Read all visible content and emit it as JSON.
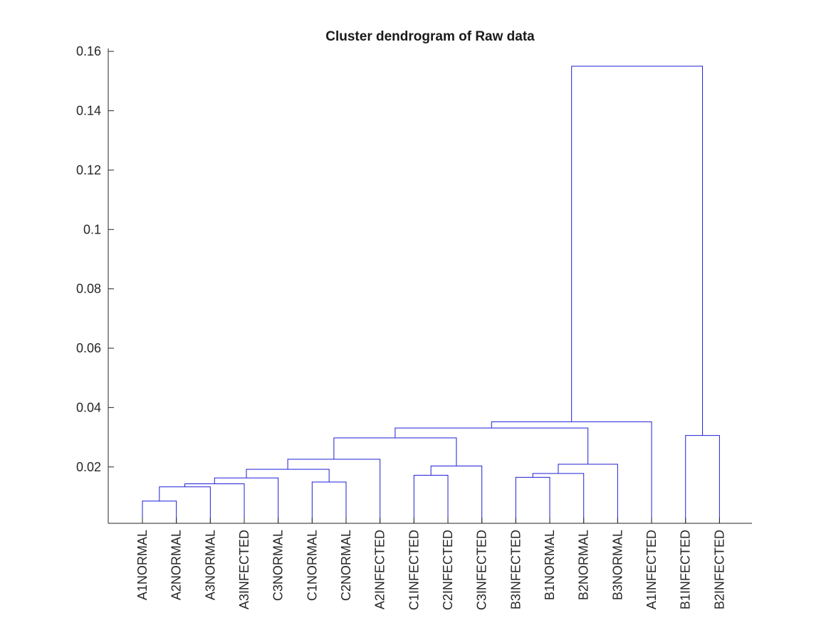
{
  "chart_data": {
    "type": "dendrogram",
    "title": "Cluster dendrogram of Raw data",
    "xlabel": "",
    "ylabel": "",
    "ylim": [
      0.001,
      0.161
    ],
    "yticks": [
      0.02,
      0.04,
      0.06,
      0.08,
      0.1,
      0.12,
      0.14,
      0.16
    ],
    "ytick_labels": [
      "0.02",
      "0.04",
      "0.06",
      "0.08",
      "0.1",
      "0.12",
      "0.14",
      "0.16"
    ],
    "grid": false,
    "link_color": "#1f1fd6",
    "leaves": [
      "A1NORMAL",
      "A2NORMAL",
      "A3NORMAL",
      "A3INFECTED",
      "C3NORMAL",
      "C1NORMAL",
      "C2NORMAL",
      "A2INFECTED",
      "C1INFECTED",
      "C2INFECTED",
      "C3INFECTED",
      "B3INFECTED",
      "B1NORMAL",
      "B2NORMAL",
      "B3NORMAL",
      "A1INFECTED",
      "B1INFECTED",
      "B2INFECTED"
    ],
    "merges": [
      {
        "left": "A1NORMAL",
        "right": "A2NORMAL",
        "height": 0.0085
      },
      {
        "left": "m1",
        "right": "A3NORMAL",
        "height": 0.0133
      },
      {
        "left": "m2",
        "right": "A3INFECTED",
        "height": 0.0143
      },
      {
        "left": "m3",
        "right": "C3NORMAL",
        "height": 0.0163
      },
      {
        "left": "C1NORMAL",
        "right": "C2NORMAL",
        "height": 0.0149
      },
      {
        "left": "m4",
        "right": "m5",
        "height": 0.0192
      },
      {
        "left": "m6",
        "right": "A2INFECTED",
        "height": 0.0226
      },
      {
        "left": "C1INFECTED",
        "right": "C2INFECTED",
        "height": 0.0172
      },
      {
        "left": "m8",
        "right": "C3INFECTED",
        "height": 0.0203
      },
      {
        "left": "m7",
        "right": "m9",
        "height": 0.0298
      },
      {
        "left": "B3INFECTED",
        "right": "B1NORMAL",
        "height": 0.0165
      },
      {
        "left": "m11",
        "right": "B2NORMAL",
        "height": 0.0178
      },
      {
        "left": "m12",
        "right": "B3NORMAL",
        "height": 0.0209
      },
      {
        "left": "m10",
        "right": "m13",
        "height": 0.0331
      },
      {
        "left": "m14",
        "right": "A1INFECTED",
        "height": 0.0352
      },
      {
        "left": "B1INFECTED",
        "right": "B2INFECTED",
        "height": 0.0306
      },
      {
        "left": "m15",
        "right": "m16",
        "height": 0.155
      }
    ]
  }
}
